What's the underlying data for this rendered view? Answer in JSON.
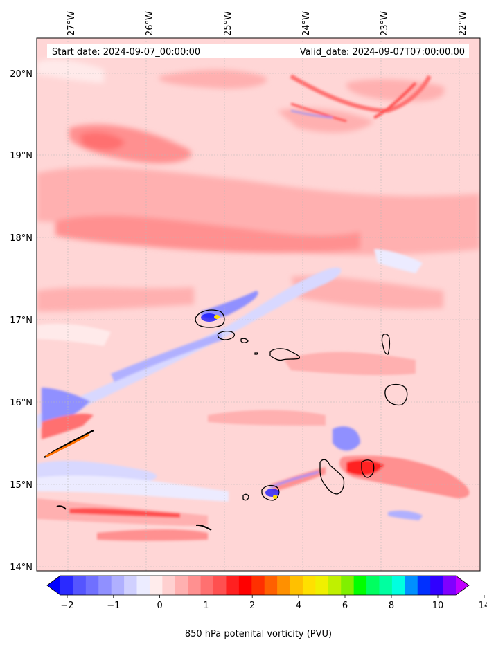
{
  "map": {
    "start_date": "Start date: 2024-09-07_00:00:00",
    "valid_date": "Valid_date: 2024-09-07T07:00:00.00",
    "lon_labels": [
      "27°W",
      "26°W",
      "25°W",
      "24°W",
      "23°W",
      "22°W"
    ],
    "lat_labels": [
      "20°N",
      "19°N",
      "18°N",
      "17°N",
      "16°N",
      "15°N",
      "14°N"
    ],
    "background_color": "#ffd6d6",
    "gridlines": true
  },
  "colorbar": {
    "label": "850 hPa potenital vorticity (PVU)",
    "tick_labels": [
      "−2",
      "−1",
      "0",
      "1",
      "2",
      "4",
      "6",
      "8",
      "10",
      "14"
    ],
    "colors": [
      "#0000ff",
      "#2a2aff",
      "#5555ff",
      "#7070ff",
      "#9090ff",
      "#b0b0ff",
      "#d0d0ff",
      "#ececff",
      "#ffecec",
      "#ffd0d0",
      "#ffb0b0",
      "#ff9090",
      "#ff7070",
      "#ff5050",
      "#ff2020",
      "#ff0000",
      "#ff3000",
      "#ff6000",
      "#ff9000",
      "#ffc000",
      "#ffe000",
      "#f0f000",
      "#c0f000",
      "#80f000",
      "#00ff00",
      "#00ff60",
      "#00ffa0",
      "#00ffe0",
      "#0090ff",
      "#0030ff",
      "#3000ff",
      "#8000ff",
      "#c000ff"
    ]
  }
}
